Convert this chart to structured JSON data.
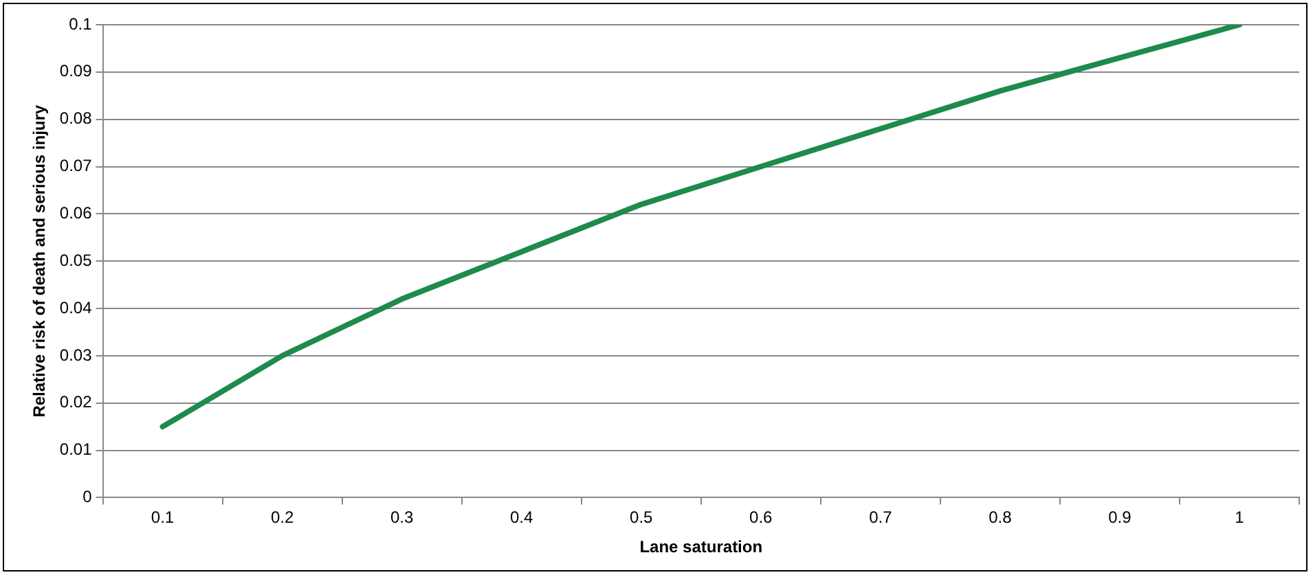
{
  "chart_data": {
    "type": "line",
    "xlabel": "Lane saturation",
    "ylabel": "Relative risk of death and serious injury",
    "categories": [
      "0.1",
      "0.2",
      "0.3",
      "0.4",
      "0.5",
      "0.6",
      "0.7",
      "0.8",
      "0.9",
      "1"
    ],
    "values": [
      0.015,
      0.03,
      0.042,
      0.052,
      0.062,
      0.07,
      0.078,
      0.086,
      0.093,
      0.1
    ],
    "color": "#1e8a4c",
    "ylim": [
      0,
      0.1
    ],
    "yticks": [
      0,
      0.01,
      0.02,
      0.03,
      0.04,
      0.05,
      0.06,
      0.07,
      0.08,
      0.09,
      0.1
    ],
    "grid": "y",
    "marker": "none",
    "line_style": "solid"
  }
}
